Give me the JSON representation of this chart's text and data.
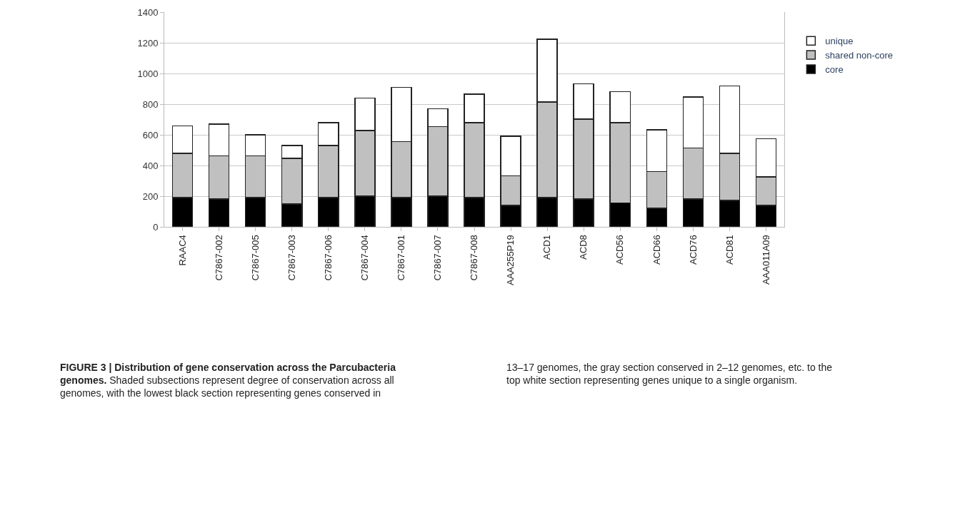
{
  "chart_data": {
    "type": "bar",
    "stacked": true,
    "title": "FIGURE 3 | Distribution of gene conservation across the Parcubacteria genomes.",
    "annotations": [
      "Shaded subsections represent degree of conservation across all genomes, with the lowest black section representing genes conserved in 13–17 genomes, the gray section conserved in 2–12 genomes, etc. to the top white section representing genes unique to a single organism."
    ],
    "categories": [
      "RAAC4",
      "C7867-002",
      "C7867-005",
      "C7867-003",
      "C7867-006",
      "C7867-004",
      "C7867-001",
      "C7867-007",
      "C7867-008",
      "AAA255P19",
      "ACD1",
      "ACD8",
      "ACD56",
      "ACD66",
      "ACD76",
      "ACD81",
      "AAA011A09"
    ],
    "series": [
      {
        "name": "core",
        "color": "#000000",
        "values": [
          190,
          182,
          190,
          148,
          190,
          199,
          190,
          199,
          190,
          139,
          190,
          182,
          156,
          122,
          182,
          173,
          139
        ]
      },
      {
        "name": "shared non-core",
        "color": "#c0c0c0",
        "values": [
          290,
          280,
          272,
          299,
          341,
          428,
          366,
          454,
          488,
          193,
          623,
          520,
          522,
          238,
          332,
          306,
          186
        ]
      },
      {
        "name": "unique",
        "color": "#ffffff",
        "values": [
          179,
          208,
          137,
          84,
          147,
          212,
          353,
          117,
          187,
          259,
          411,
          231,
          204,
          273,
          333,
          439,
          249
        ]
      }
    ],
    "ylim": [
      0,
      1400
    ],
    "yticks": [
      0,
      200,
      400,
      600,
      800,
      1000,
      1200,
      1400
    ],
    "grid": "y",
    "legend": "right"
  }
}
